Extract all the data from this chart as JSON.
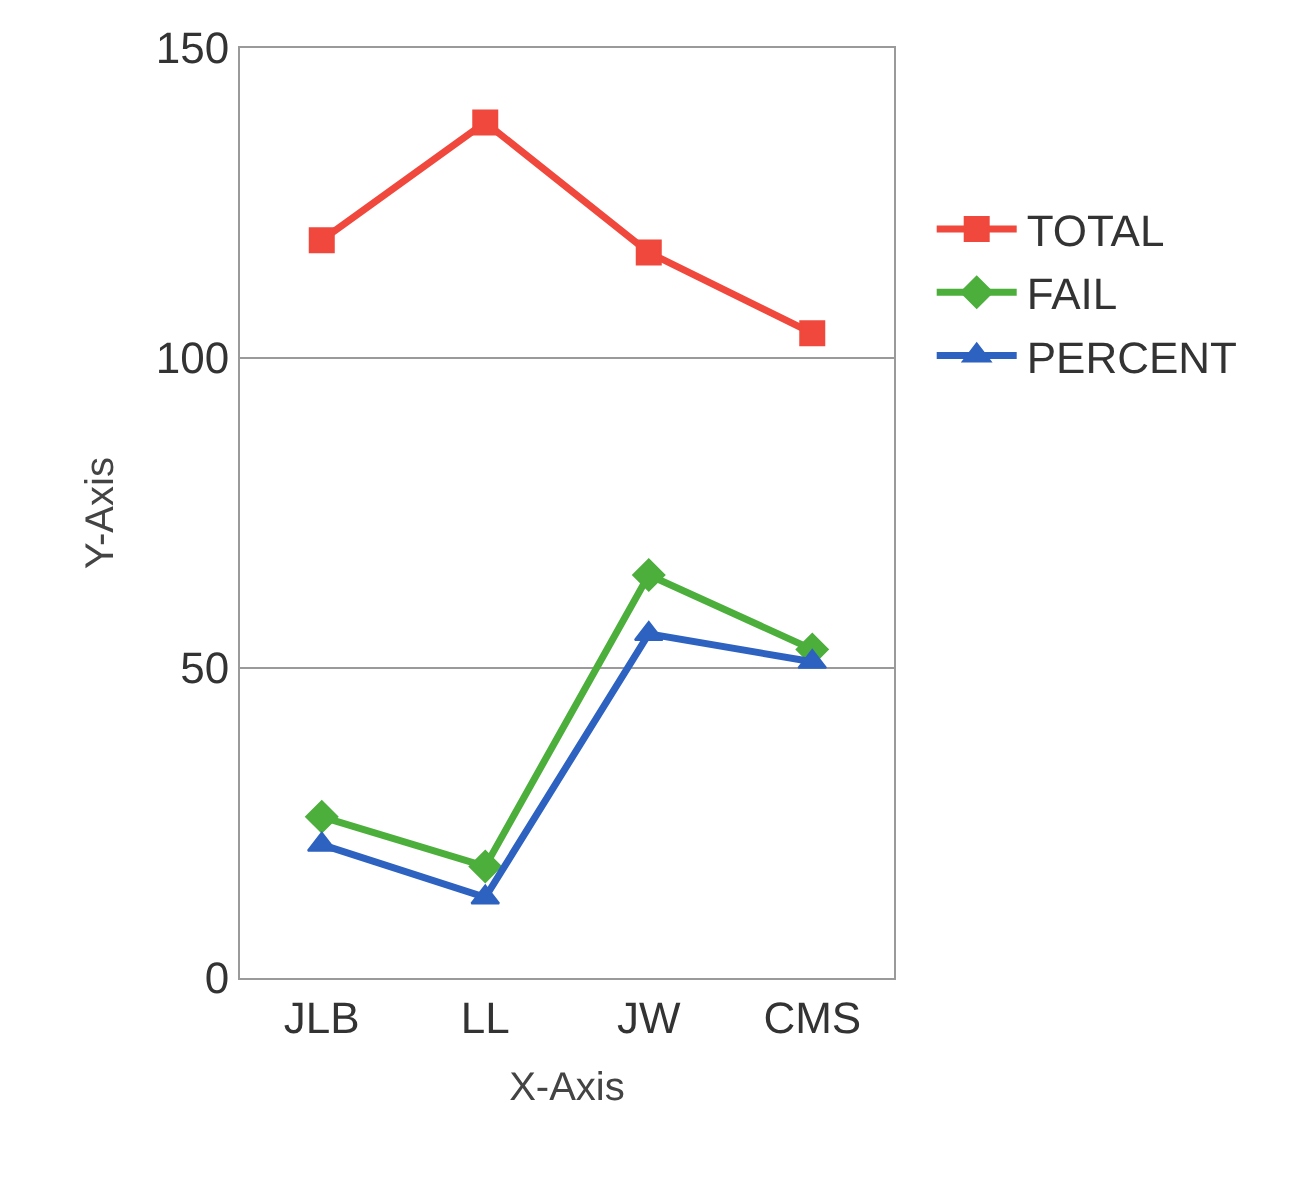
{
  "chart_data": {
    "type": "line",
    "xlabel": "X-Axis",
    "ylabel": "Y-Axis",
    "categories": [
      "JLB",
      "LL",
      "JW",
      "CMS"
    ],
    "series": [
      {
        "name": "TOTAL",
        "color": "#f0483c",
        "marker": "square",
        "values": [
          119,
          138,
          117,
          104
        ]
      },
      {
        "name": "FAIL",
        "color": "#4caf3c",
        "marker": "diamond",
        "values": [
          26,
          18,
          65,
          53
        ]
      },
      {
        "name": "PERCENT",
        "color": "#2d62c0",
        "marker": "triangle",
        "values": [
          21.5,
          13,
          55.5,
          51
        ]
      }
    ],
    "ylim": [
      0,
      150
    ],
    "yticks": [
      0,
      50,
      100,
      150
    ],
    "grid": "y",
    "legend": "right",
    "line_style": "solid"
  }
}
